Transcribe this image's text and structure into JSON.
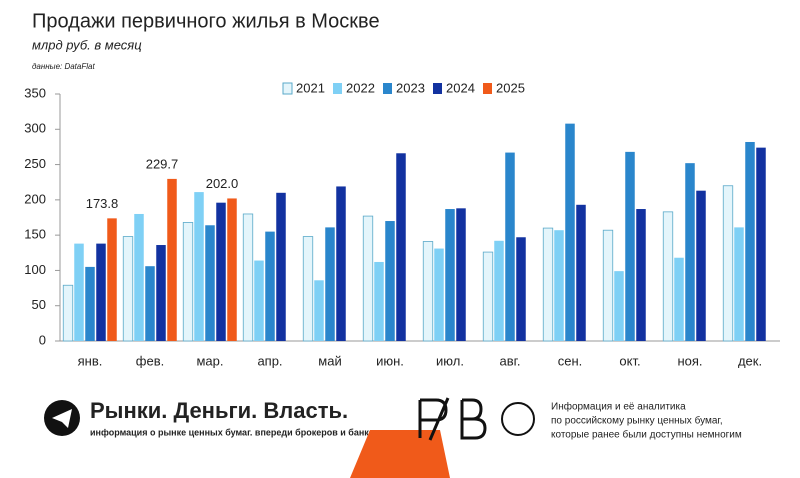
{
  "chart_data": {
    "type": "bar",
    "title": "Продажи первичного жилья в Москве",
    "subtitle": "млрд руб. в месяц",
    "source": "данные: DataFlat",
    "categories": [
      "янв.",
      "фев.",
      "мар.",
      "апр.",
      "май",
      "июн.",
      "июл.",
      "авг.",
      "сен.",
      "окт.",
      "ноя.",
      "дек."
    ],
    "series": [
      {
        "name": "2021",
        "color": "#e4f5fb",
        "values": [
          79,
          148,
          168,
          180,
          148,
          177,
          141,
          126,
          160,
          157,
          183,
          220
        ]
      },
      {
        "name": "2022",
        "color": "#7fd0f5",
        "values": [
          138,
          180,
          211,
          114,
          86,
          112,
          131,
          142,
          157,
          99,
          118,
          161
        ]
      },
      {
        "name": "2023",
        "color": "#2a86cc",
        "values": [
          105,
          106,
          164,
          155,
          161,
          170,
          187,
          267,
          308,
          268,
          252,
          282
        ]
      },
      {
        "name": "2024",
        "color": "#1232a0",
        "values": [
          138,
          136,
          196,
          210,
          219,
          266,
          188,
          147,
          193,
          187,
          213,
          274
        ]
      },
      {
        "name": "2025",
        "color": "#f05a1a",
        "values": [
          173.8,
          229.7,
          202.0,
          null,
          null,
          null,
          null,
          null,
          null,
          null,
          null,
          null
        ],
        "value_labels": [
          "173.8",
          "229.7",
          "202.0",
          null,
          null,
          null,
          null,
          null,
          null,
          null,
          null,
          null
        ]
      }
    ],
    "ylim": [
      0,
      350
    ],
    "yticks": [
      0,
      50,
      100,
      150,
      200,
      250,
      300,
      350
    ],
    "grid": false
  },
  "footer": {
    "brand": "Рынки. Деньги. Власть.",
    "tagline": "информация о рынке ценных бумаг. впереди брокеров и банков.",
    "about": [
      "Информация и её аналитика",
      "по российскому рынку ценных бумаг,",
      "которые ранее были доступны немногим"
    ]
  }
}
